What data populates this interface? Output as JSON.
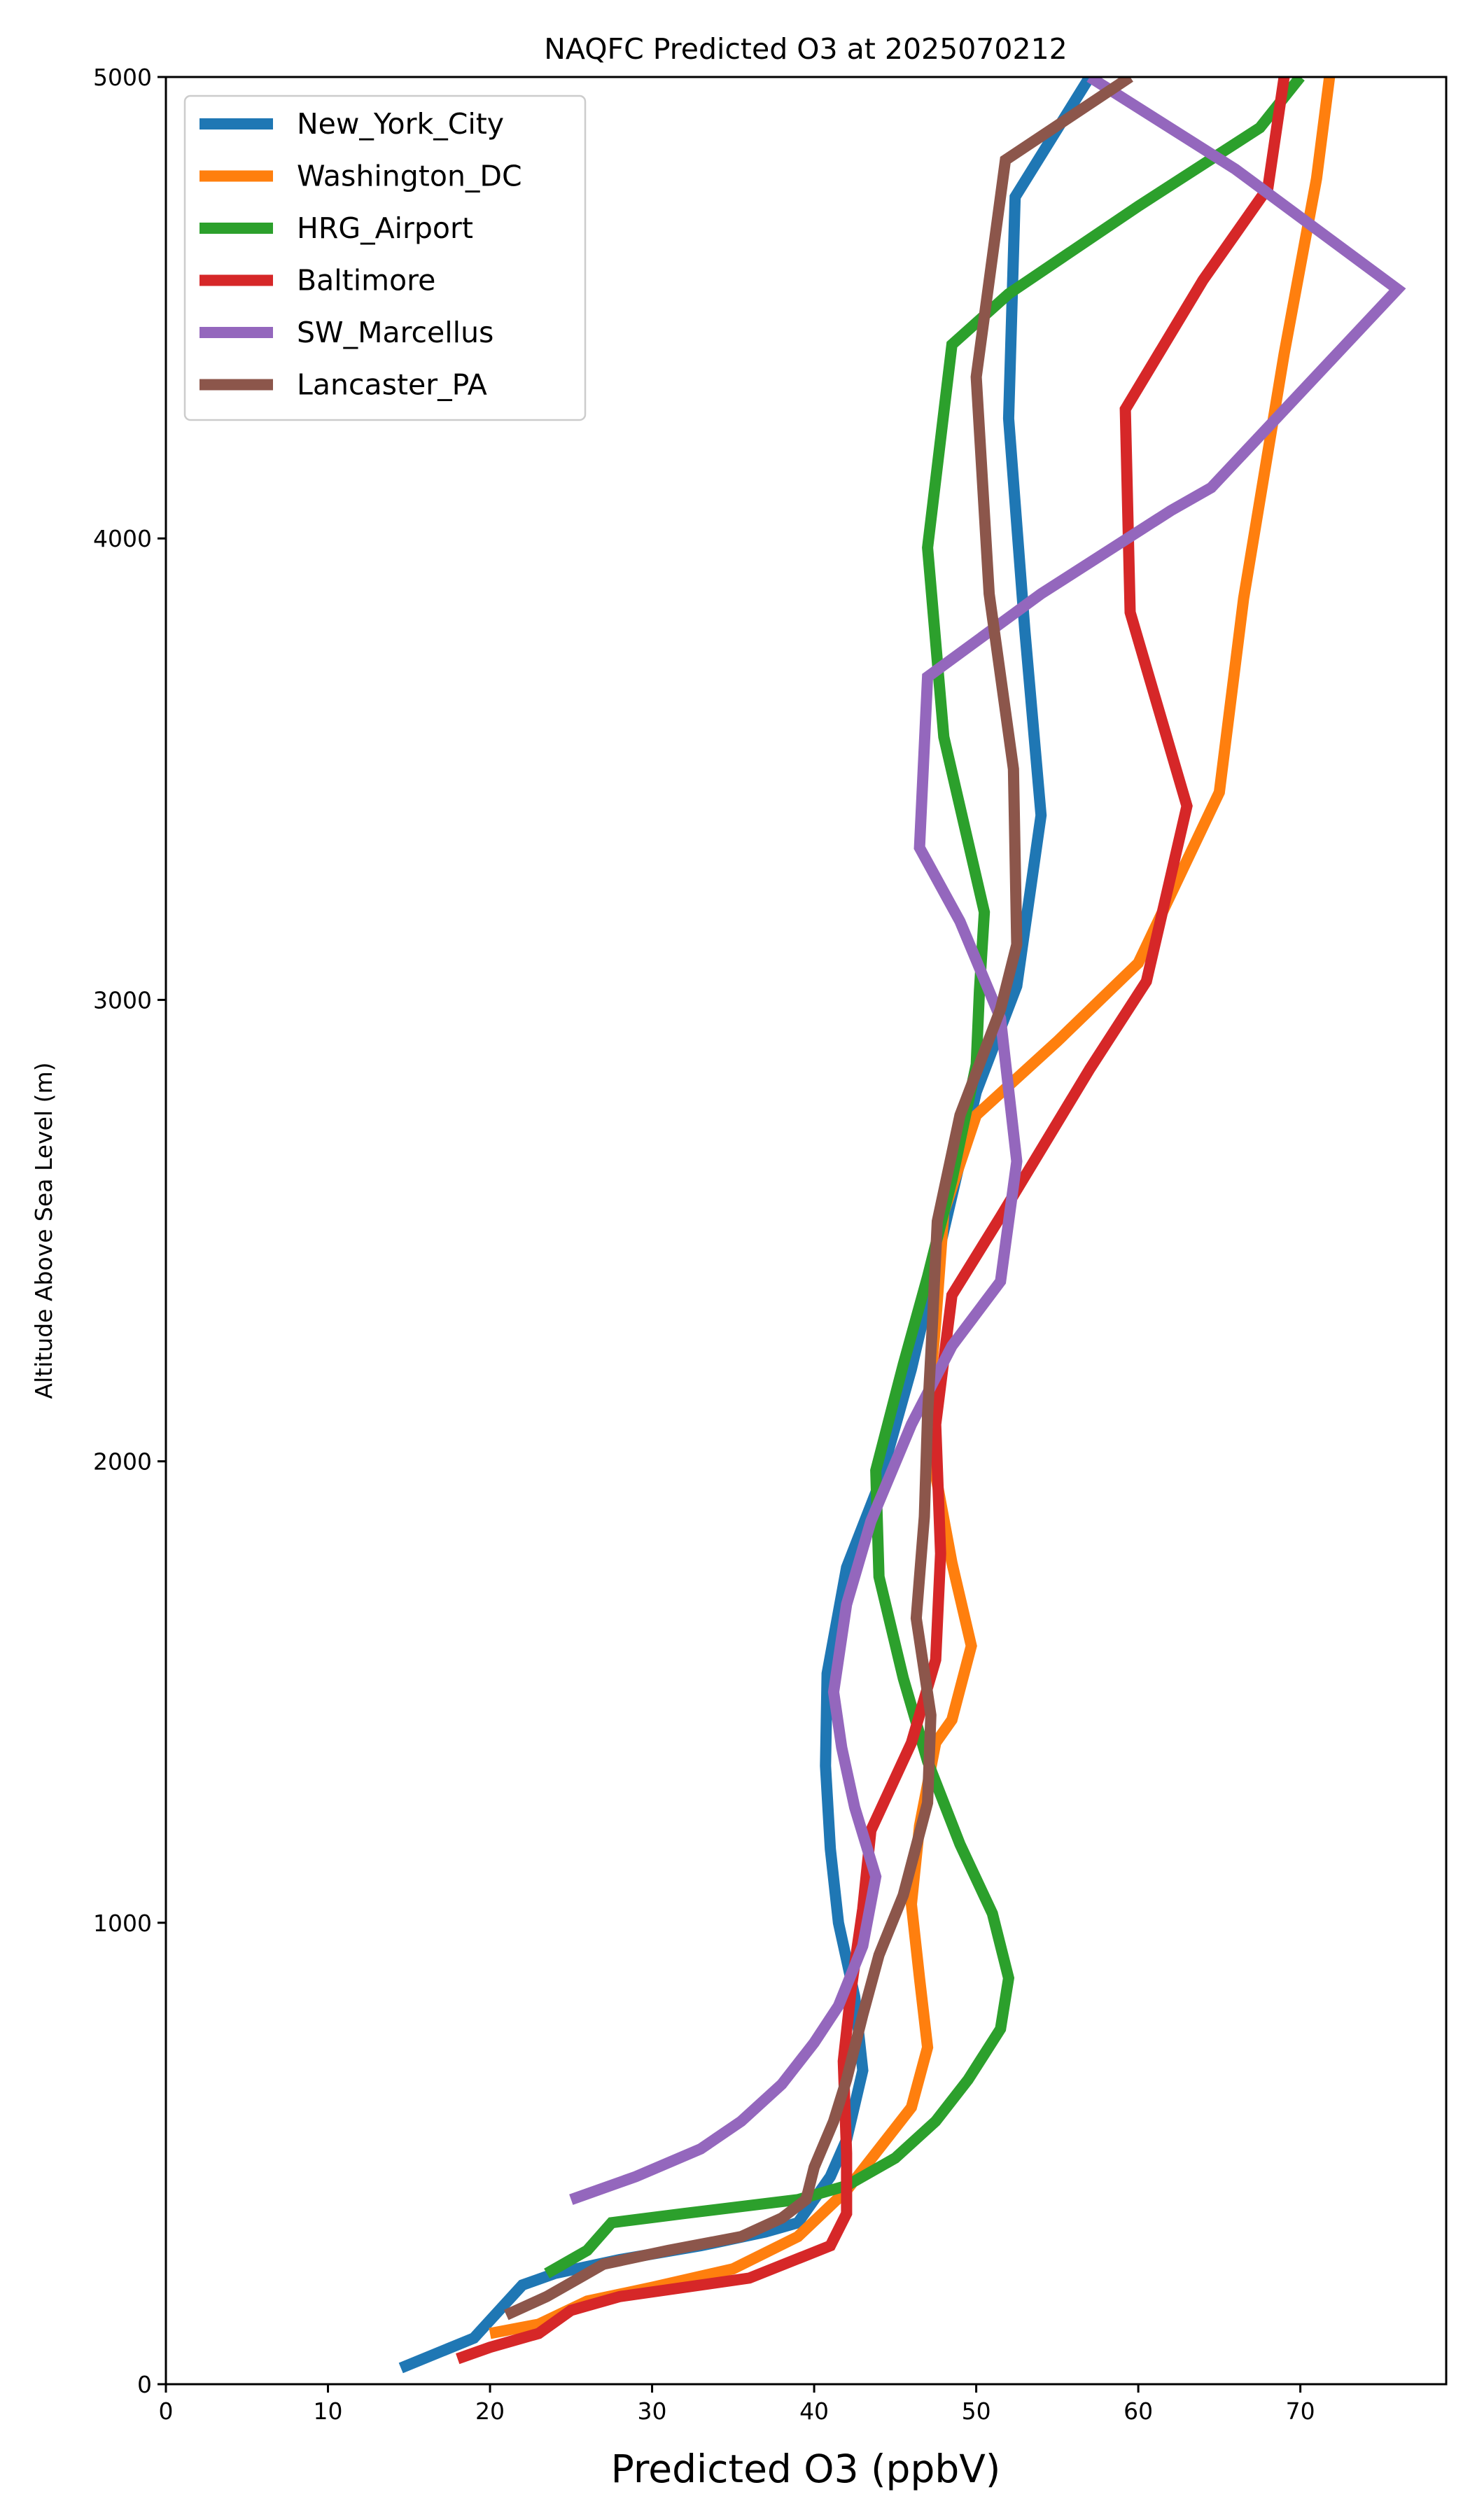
{
  "chart_data": {
    "type": "line",
    "title": "NAQFC Predicted O3 at 2025070212",
    "xlabel": "Predicted O3 (ppbV)",
    "ylabel": "Altitude Above Sea Level (m)",
    "xlim": [
      0,
      79
    ],
    "ylim": [
      0,
      5000
    ],
    "x_ticks": [
      0,
      10,
      20,
      30,
      40,
      50,
      60,
      70
    ],
    "y_ticks": [
      0,
      1000,
      2000,
      3000,
      4000,
      5000
    ],
    "grid": false,
    "legend_position": "top-left",
    "series": [
      {
        "name": "New_York_City",
        "color": "#1f77b4",
        "points": [
          [
            14.5,
            35
          ],
          [
            19,
            100
          ],
          [
            22,
            215
          ],
          [
            24,
            240
          ],
          [
            28,
            270
          ],
          [
            33,
            300
          ],
          [
            37,
            330
          ],
          [
            39,
            350
          ],
          [
            41,
            450
          ],
          [
            42,
            530
          ],
          [
            43,
            680
          ],
          [
            42.5,
            840
          ],
          [
            41.5,
            1000
          ],
          [
            41,
            1160
          ],
          [
            40.7,
            1340
          ],
          [
            40.8,
            1540
          ],
          [
            42,
            1770
          ],
          [
            44,
            1950
          ],
          [
            46,
            2200
          ],
          [
            48,
            2500
          ],
          [
            50,
            2800
          ],
          [
            52.5,
            3030
          ],
          [
            54,
            3400
          ],
          [
            53,
            3800
          ],
          [
            52,
            4260
          ],
          [
            52.4,
            4740
          ],
          [
            57,
            5000
          ]
        ]
      },
      {
        "name": "Washington_DC",
        "color": "#ff7f0e",
        "points": [
          [
            20,
            110
          ],
          [
            23,
            130
          ],
          [
            26,
            180
          ],
          [
            30,
            210
          ],
          [
            35,
            250
          ],
          [
            39,
            320
          ],
          [
            42,
            420
          ],
          [
            44,
            510
          ],
          [
            46,
            600
          ],
          [
            47,
            730
          ],
          [
            46.5,
            880
          ],
          [
            46,
            1040
          ],
          [
            46.5,
            1210
          ],
          [
            47.5,
            1390
          ],
          [
            48.5,
            1440
          ],
          [
            49.7,
            1600
          ],
          [
            48.5,
            1780
          ],
          [
            47.5,
            1970
          ],
          [
            47,
            2100
          ],
          [
            47.5,
            2300
          ],
          [
            48,
            2540
          ],
          [
            50,
            2750
          ],
          [
            55,
            2910
          ],
          [
            60,
            3080
          ],
          [
            65,
            3450
          ],
          [
            66.5,
            3870
          ],
          [
            69,
            4400
          ],
          [
            71,
            4780
          ],
          [
            71.8,
            5000
          ]
        ]
      },
      {
        "name": "HRG_Airport",
        "color": "#2ca02c",
        "points": [
          [
            23.5,
            240
          ],
          [
            26,
            290
          ],
          [
            27.5,
            350
          ],
          [
            32,
            370
          ],
          [
            39,
            400
          ],
          [
            42,
            430
          ],
          [
            45,
            490
          ],
          [
            47.5,
            570
          ],
          [
            49.5,
            660
          ],
          [
            51.5,
            770
          ],
          [
            52,
            880
          ],
          [
            51,
            1020
          ],
          [
            49,
            1170
          ],
          [
            47,
            1350
          ],
          [
            45.5,
            1530
          ],
          [
            44,
            1750
          ],
          [
            43.8,
            1980
          ],
          [
            45.5,
            2210
          ],
          [
            47,
            2400
          ],
          [
            48.5,
            2610
          ],
          [
            50,
            2860
          ],
          [
            50.2,
            3020
          ],
          [
            50.5,
            3190
          ],
          [
            48,
            3570
          ],
          [
            47,
            3980
          ],
          [
            48.5,
            4420
          ],
          [
            52,
            4530
          ],
          [
            60,
            4720
          ],
          [
            67.5,
            4890
          ],
          [
            70,
            5000
          ]
        ]
      },
      {
        "name": "Baltimore",
        "color": "#d62728",
        "points": [
          [
            18,
            55
          ],
          [
            20,
            80
          ],
          [
            23,
            110
          ],
          [
            25,
            160
          ],
          [
            28,
            190
          ],
          [
            36,
            230
          ],
          [
            41,
            300
          ],
          [
            42,
            370
          ],
          [
            42,
            500
          ],
          [
            41.8,
            700
          ],
          [
            42.3,
            860
          ],
          [
            43,
            1030
          ],
          [
            43.5,
            1200
          ],
          [
            46,
            1390
          ],
          [
            47.5,
            1570
          ],
          [
            47.8,
            1800
          ],
          [
            47.5,
            2080
          ],
          [
            48.5,
            2360
          ],
          [
            51.5,
            2530
          ],
          [
            57,
            2850
          ],
          [
            60.5,
            3040
          ],
          [
            63,
            3420
          ],
          [
            59.5,
            3840
          ],
          [
            59.2,
            4280
          ],
          [
            64,
            4560
          ],
          [
            68,
            4760
          ],
          [
            69,
            5000
          ]
        ]
      },
      {
        "name": "SW_Marcellus",
        "color": "#9467bd",
        "points": [
          [
            25,
            400
          ],
          [
            29,
            450
          ],
          [
            33,
            510
          ],
          [
            35.5,
            570
          ],
          [
            38,
            650
          ],
          [
            40,
            740
          ],
          [
            41.5,
            820
          ],
          [
            43,
            950
          ],
          [
            43.8,
            1100
          ],
          [
            42.5,
            1250
          ],
          [
            41.7,
            1380
          ],
          [
            41.2,
            1500
          ],
          [
            42,
            1690
          ],
          [
            43.5,
            1870
          ],
          [
            46,
            2080
          ],
          [
            48.5,
            2250
          ],
          [
            51.5,
            2390
          ],
          [
            52.5,
            2650
          ],
          [
            51.5,
            2960
          ],
          [
            49,
            3170
          ],
          [
            46.5,
            3330
          ],
          [
            47,
            3700
          ],
          [
            54,
            3880
          ],
          [
            62,
            4060
          ],
          [
            64.5,
            4110
          ],
          [
            76,
            4540
          ],
          [
            66,
            4800
          ],
          [
            57,
            5000
          ]
        ]
      },
      {
        "name": "Lancaster_PA",
        "color": "#8c564b",
        "points": [
          [
            21,
            150
          ],
          [
            23.5,
            190
          ],
          [
            25.5,
            230
          ],
          [
            27,
            260
          ],
          [
            31,
            290
          ],
          [
            35.5,
            320
          ],
          [
            38,
            360
          ],
          [
            39.5,
            400
          ],
          [
            40,
            470
          ],
          [
            41.2,
            570
          ],
          [
            42,
            660
          ],
          [
            43,
            800
          ],
          [
            44,
            930
          ],
          [
            45.5,
            1060
          ],
          [
            47,
            1260
          ],
          [
            47.2,
            1450
          ],
          [
            46.3,
            1660
          ],
          [
            46.8,
            1880
          ],
          [
            47,
            2100
          ],
          [
            47.3,
            2300
          ],
          [
            47.6,
            2520
          ],
          [
            49,
            2750
          ],
          [
            51.5,
            2980
          ],
          [
            52.5,
            3120
          ],
          [
            52.3,
            3500
          ],
          [
            50.8,
            3880
          ],
          [
            50,
            4350
          ],
          [
            51.8,
            4820
          ],
          [
            59.5,
            5000
          ]
        ]
      }
    ]
  }
}
